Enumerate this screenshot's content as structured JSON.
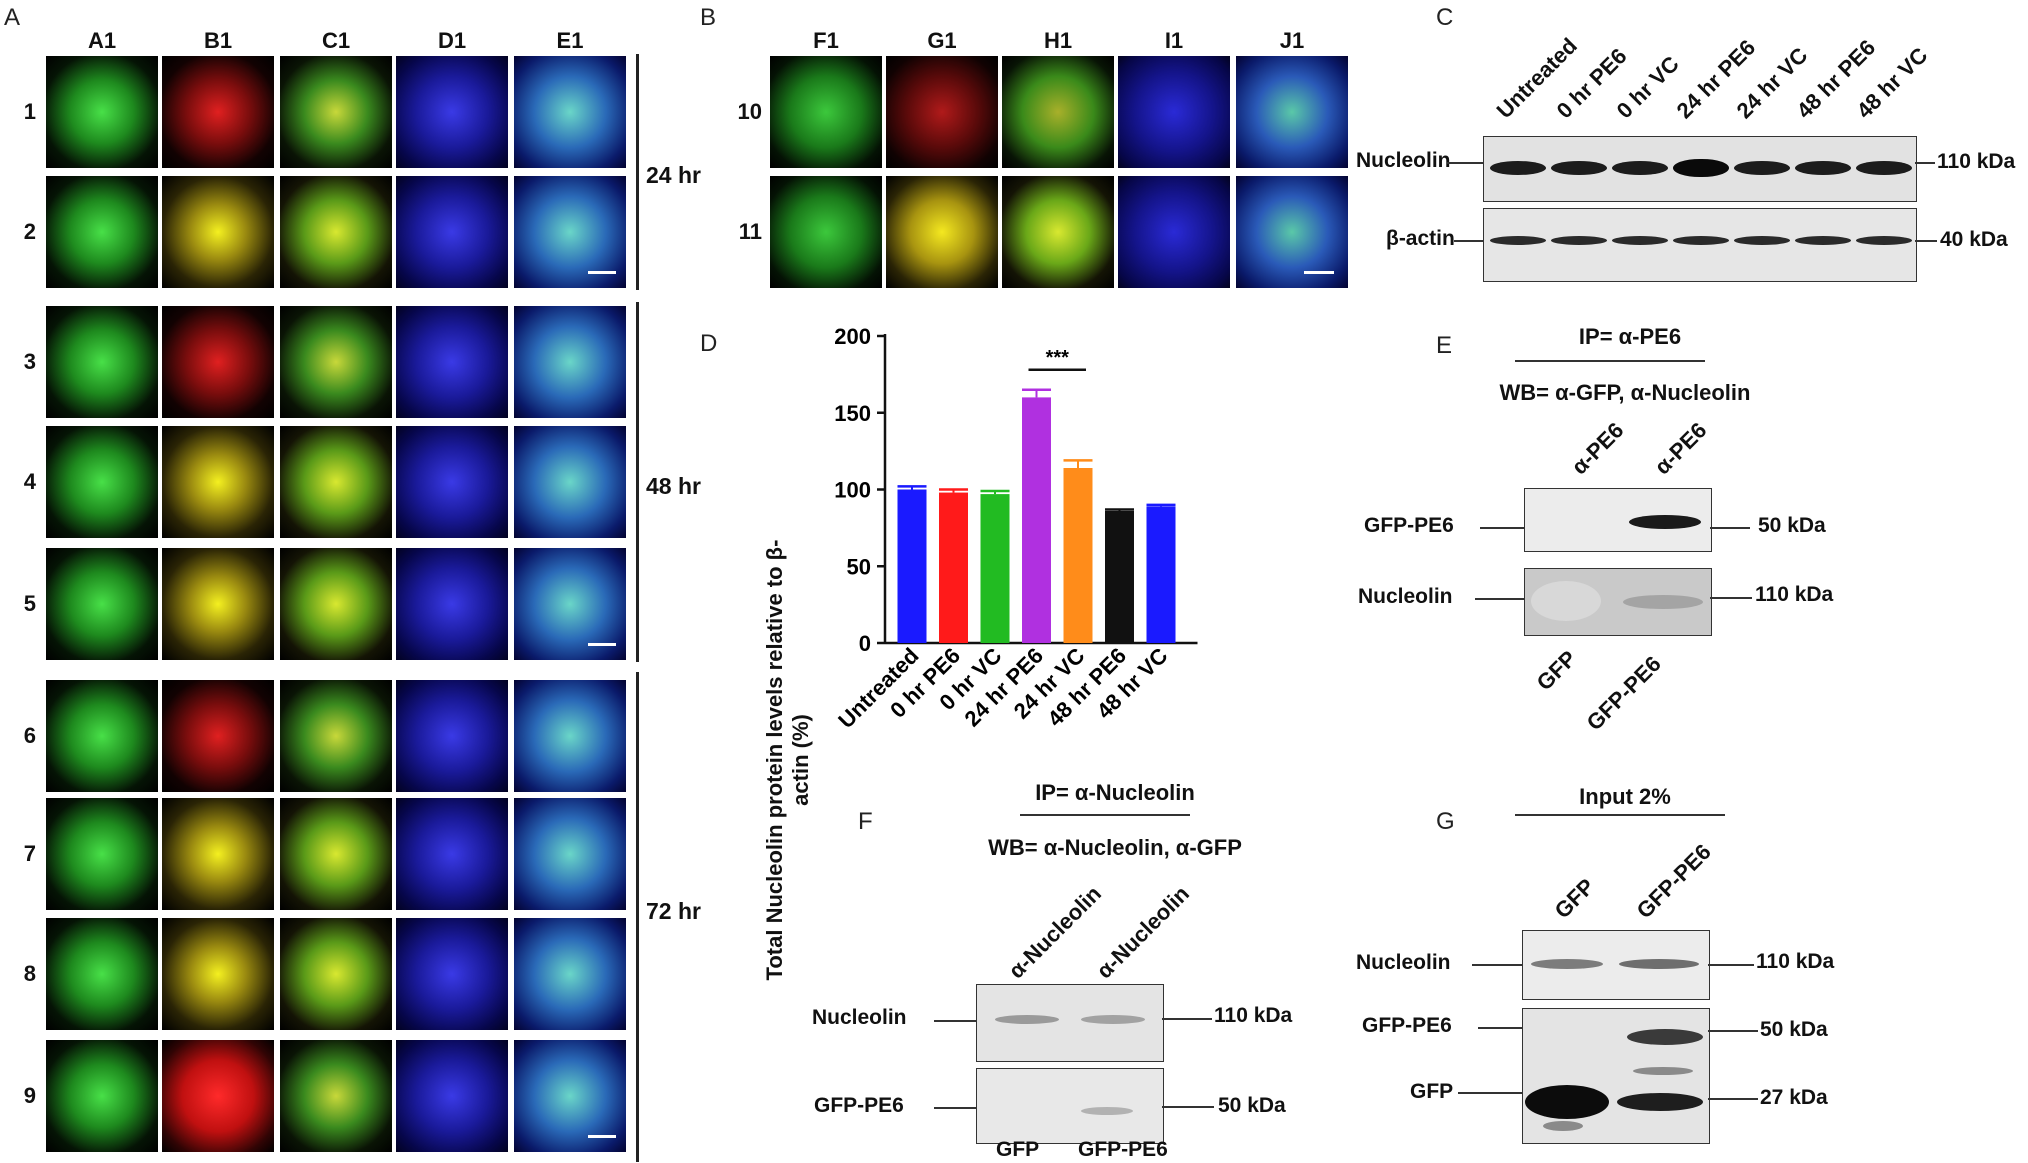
{
  "panels": {
    "A": {
      "label": "A",
      "columns": [
        "A1",
        "B1",
        "C1",
        "D1",
        "E1"
      ],
      "rows": [
        "1",
        "2",
        "3",
        "4",
        "5",
        "6",
        "7",
        "8",
        "9"
      ],
      "times": [
        "24 hr",
        "48 hr",
        "72 hr"
      ]
    },
    "B": {
      "label": "B",
      "columns": [
        "F1",
        "G1",
        "H1",
        "I1",
        "J1"
      ],
      "rows": [
        "10",
        "11"
      ]
    },
    "C": {
      "label": "C",
      "lanes": [
        "Untreated",
        "0 hr PE6",
        "0 hr VC",
        "24 hr PE6",
        "24 hr VC",
        "48 hr PE6",
        "48 hr VC"
      ],
      "rows": [
        "Nucleolin",
        "β-actin"
      ],
      "kda": [
        "110 kDa",
        "40 kDa"
      ]
    },
    "D": {
      "label": "D"
    },
    "E": {
      "label": "E",
      "ip": "IP= α-PE6",
      "wb": "WB= α-GFP, α-Nucleolin",
      "lanes_top": [
        "α-PE6",
        "α-PE6"
      ],
      "lanes_bottom": [
        "GFP",
        "GFP-PE6"
      ],
      "rows": [
        "GFP-PE6",
        "Nucleolin"
      ],
      "kda": [
        "50 kDa",
        "110 kDa"
      ]
    },
    "F": {
      "label": "F",
      "ip": "IP= α-Nucleolin",
      "wb": "WB= α-Nucleolin, α-GFP",
      "lanes_top": [
        "α-Nucleolin",
        "α-Nucleolin"
      ],
      "lanes_bottom": [
        "GFP",
        "GFP-PE6"
      ],
      "rows": [
        "Nucleolin",
        "GFP-PE6"
      ],
      "kda": [
        "110 kDa",
        "50 kDa"
      ]
    },
    "G": {
      "label": "G",
      "title": "Input 2%",
      "lanes_top": [
        "GFP",
        "GFP-PE6"
      ],
      "rows": [
        "Nucleolin",
        "GFP-PE6",
        "GFP"
      ],
      "kda": [
        "110 kDa",
        "50 kDa",
        "27 kDa"
      ]
    }
  },
  "chart_data": {
    "type": "bar",
    "categories": [
      "Untreated",
      "0 hr PE6",
      "0 hr VC",
      "24 hr PE6",
      "24 hr VC",
      "48 hr PE6",
      "48 hr VC"
    ],
    "values": [
      100,
      98,
      97,
      160,
      114,
      86,
      89
    ],
    "errors": [
      2,
      2,
      2,
      5,
      5,
      1,
      1
    ],
    "colors": [
      "#1a1aff",
      "#ff1a1a",
      "#22bb22",
      "#b030e0",
      "#ff8c1a",
      "#111111",
      "#1a1aff"
    ],
    "ylabel": "Total Nucleolin protein levels relative to β-actin (%)",
    "yticks": [
      0,
      50,
      100,
      150,
      200
    ],
    "ylim": [
      0,
      200
    ],
    "significance": {
      "from": "24 hr PE6",
      "to": "24 hr VC",
      "label": "***"
    }
  }
}
